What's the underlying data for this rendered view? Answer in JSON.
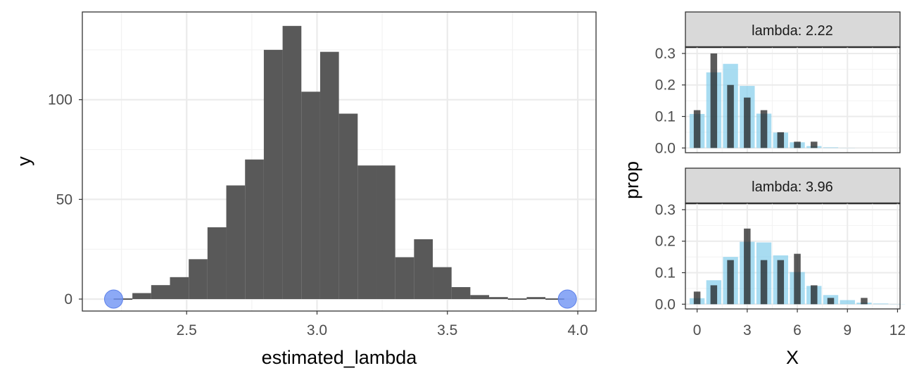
{
  "chart_data": [
    {
      "type": "bar",
      "panel": "histogram",
      "xlabel": "estimated_lambda",
      "ylabel": "y",
      "xlim": [
        2.1,
        4.07
      ],
      "ylim": [
        -6,
        144
      ],
      "x_ticks": [
        {
          "value": 2.5,
          "label": "2.5"
        },
        {
          "value": 3.0,
          "label": "3.0"
        },
        {
          "value": 3.5,
          "label": "3.5"
        },
        {
          "value": 4.0,
          "label": "4.0"
        }
      ],
      "y_ticks": [
        {
          "value": 0,
          "label": "0"
        },
        {
          "value": 50,
          "label": "50"
        },
        {
          "value": 100,
          "label": "100"
        }
      ],
      "bin_width": 0.072,
      "bins": [
        {
          "start": 2.22,
          "count": 0
        },
        {
          "start": 2.292,
          "count": 3
        },
        {
          "start": 2.364,
          "count": 7
        },
        {
          "start": 2.436,
          "count": 11
        },
        {
          "start": 2.508,
          "count": 20
        },
        {
          "start": 2.58,
          "count": 36
        },
        {
          "start": 2.652,
          "count": 57
        },
        {
          "start": 2.724,
          "count": 70
        },
        {
          "start": 2.796,
          "count": 125
        },
        {
          "start": 2.868,
          "count": 137
        },
        {
          "start": 2.94,
          "count": 104
        },
        {
          "start": 3.012,
          "count": 124
        },
        {
          "start": 3.084,
          "count": 93
        },
        {
          "start": 3.156,
          "count": 67
        },
        {
          "start": 3.228,
          "count": 67
        },
        {
          "start": 3.3,
          "count": 21
        },
        {
          "start": 3.372,
          "count": 30
        },
        {
          "start": 3.444,
          "count": 16
        },
        {
          "start": 3.516,
          "count": 6
        },
        {
          "start": 3.588,
          "count": 2
        },
        {
          "start": 3.66,
          "count": 1
        },
        {
          "start": 3.732,
          "count": 0
        },
        {
          "start": 3.804,
          "count": 1
        },
        {
          "start": 3.876,
          "count": 0
        }
      ],
      "highlight_points": [
        {
          "x": 2.22,
          "y": 0,
          "color": "#6f93f4"
        },
        {
          "x": 3.96,
          "y": 0,
          "color": "#6f93f4"
        }
      ]
    },
    {
      "type": "bar",
      "panel": "facets",
      "xlabel": "X",
      "ylabel": "prop",
      "xlim": [
        -0.7,
        12.15
      ],
      "ylim": [
        -0.015,
        0.32
      ],
      "x_ticks": [
        {
          "value": 0,
          "label": "0"
        },
        {
          "value": 3,
          "label": "3"
        },
        {
          "value": 6,
          "label": "6"
        },
        {
          "value": 9,
          "label": "9"
        },
        {
          "value": 12,
          "label": "12"
        }
      ],
      "y_ticks": [
        {
          "value": 0.0,
          "label": "0.0"
        },
        {
          "value": 0.1,
          "label": "0.1"
        },
        {
          "value": 0.2,
          "label": "0.2"
        },
        {
          "value": 0.3,
          "label": "0.3"
        }
      ],
      "colors": {
        "theoretical": "#87ceeb",
        "observed": "#1a1a1a"
      },
      "facets": [
        {
          "strip": "lambda: 2.22",
          "theoretical": [
            0.108,
            0.24,
            0.267,
            0.197,
            0.109,
            0.049,
            0.018,
            0.006,
            0.002,
            0.0005,
            0.0001
          ],
          "observed": [
            0.12,
            0.3,
            0.2,
            0.16,
            0.12,
            0.05,
            0.02,
            0.02,
            0,
            0,
            0
          ]
        },
        {
          "strip": "lambda: 3.96",
          "theoretical": [
            0.019,
            0.076,
            0.15,
            0.198,
            0.196,
            0.155,
            0.102,
            0.058,
            0.029,
            0.013,
            0.005,
            0.002,
            0.0006
          ],
          "observed": [
            0.04,
            0.06,
            0.14,
            0.24,
            0.14,
            0.14,
            0.16,
            0.06,
            0.02,
            0,
            0.02,
            0,
            0
          ]
        }
      ]
    }
  ]
}
